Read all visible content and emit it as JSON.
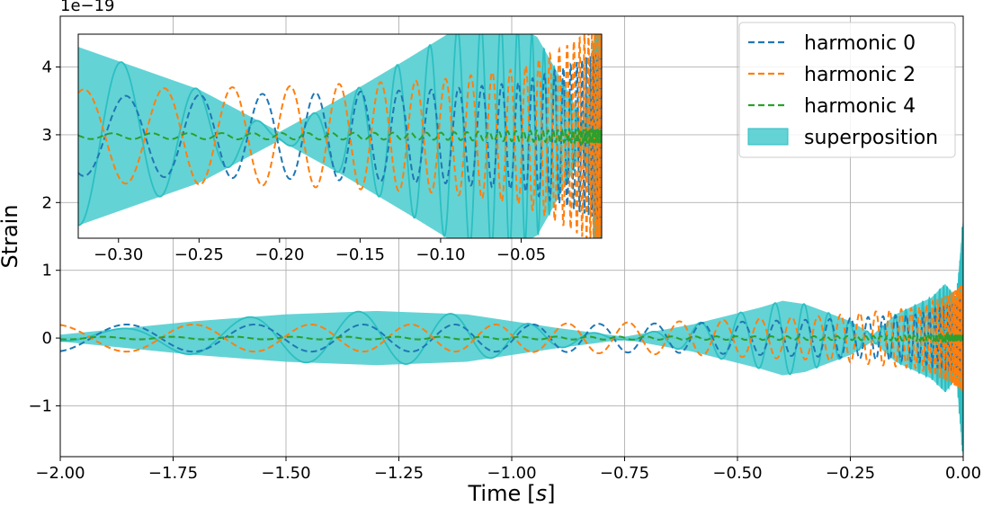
{
  "chart_data": [
    {
      "id": "main",
      "type": "line",
      "title": "",
      "xlabel": "Time",
      "xlabel_unit": "s",
      "ylabel": "Strain",
      "offset_text": "1e−19",
      "xlim": [
        -2.0,
        0.0
      ],
      "ylim": [
        -1.75,
        4.75
      ],
      "grid": true,
      "x_ticks": [
        -2.0,
        -1.75,
        -1.5,
        -1.25,
        -1.0,
        -0.75,
        -0.5,
        -0.25,
        0.0
      ],
      "x_tick_labels": [
        "−2.00",
        "−1.75",
        "−1.50",
        "−1.25",
        "−1.00",
        "−0.75",
        "−0.50",
        "−0.25",
        "0.00"
      ],
      "y_ticks": [
        -1,
        0,
        1,
        2,
        3,
        4
      ],
      "y_tick_labels": [
        "−1",
        "0",
        "1",
        "2",
        "3",
        "4"
      ],
      "legend_position": "top-right",
      "series": [
        {
          "name": "harmonic 0",
          "style": "dashed",
          "color": "#1f77b4",
          "amplitude_points": [
            [
              -2.0,
              0.2
            ],
            [
              -1.0,
              0.2
            ],
            [
              -0.6,
              0.22
            ],
            [
              -0.3,
              0.28
            ],
            [
              -0.1,
              0.35
            ],
            [
              -0.03,
              0.5
            ],
            [
              0.0,
              0.6
            ]
          ]
        },
        {
          "name": "harmonic 2",
          "style": "dashed",
          "color": "#ff7f0e",
          "amplitude_points": [
            [
              -2.0,
              0.2
            ],
            [
              -1.0,
              0.2
            ],
            [
              -0.6,
              0.25
            ],
            [
              -0.3,
              0.33
            ],
            [
              -0.1,
              0.45
            ],
            [
              -0.03,
              0.65
            ],
            [
              0.0,
              0.8
            ]
          ]
        },
        {
          "name": "harmonic 4",
          "style": "dashed",
          "color": "#2ca02c",
          "amplitude_points": [
            [
              -2.0,
              0.02
            ],
            [
              -1.0,
              0.02
            ],
            [
              -0.2,
              0.03
            ],
            [
              0.0,
              0.05
            ]
          ]
        },
        {
          "name": "superposition",
          "style": "filled",
          "color": "#4ecdcf",
          "envelope_points": [
            [
              -2.0,
              0.05
            ],
            [
              -1.7,
              0.25
            ],
            [
              -1.5,
              0.35
            ],
            [
              -1.3,
              0.4
            ],
            [
              -1.1,
              0.35
            ],
            [
              -0.9,
              0.15
            ],
            [
              -0.75,
              0.02
            ],
            [
              -0.6,
              0.2
            ],
            [
              -0.45,
              0.45
            ],
            [
              -0.4,
              0.55
            ],
            [
              -0.35,
              0.5
            ],
            [
              -0.25,
              0.25
            ],
            [
              -0.2,
              0.05
            ],
            [
              -0.15,
              0.35
            ],
            [
              -0.07,
              0.6
            ],
            [
              -0.04,
              0.8
            ],
            [
              -0.015,
              0.6
            ],
            [
              0.0,
              1.8
            ]
          ]
        }
      ]
    },
    {
      "id": "inset",
      "type": "line",
      "xlim": [
        -0.325,
        0.0
      ],
      "ylim": [
        -0.72,
        0.72
      ],
      "x_ticks": [
        -0.3,
        -0.25,
        -0.2,
        -0.15,
        -0.1,
        -0.05
      ],
      "x_tick_labels": [
        "−0.30",
        "−0.25",
        "−0.20",
        "−0.15",
        "−0.10",
        "−0.05"
      ],
      "series": [
        {
          "name": "harmonic 0",
          "style": "dashed",
          "color": "#1f77b4",
          "amplitude_points": [
            [
              -0.325,
              0.28
            ],
            [
              -0.2,
              0.3
            ],
            [
              -0.1,
              0.33
            ],
            [
              -0.05,
              0.38
            ],
            [
              -0.02,
              0.5
            ],
            [
              0.0,
              0.6
            ]
          ]
        },
        {
          "name": "harmonic 2",
          "style": "dashed",
          "color": "#ff7f0e",
          "amplitude_points": [
            [
              -0.325,
              0.33
            ],
            [
              -0.2,
              0.35
            ],
            [
              -0.1,
              0.4
            ],
            [
              -0.05,
              0.48
            ],
            [
              -0.02,
              0.65
            ],
            [
              0.0,
              0.8
            ]
          ]
        },
        {
          "name": "harmonic 4",
          "style": "dashed",
          "color": "#2ca02c",
          "amplitude_points": [
            [
              -0.325,
              0.02
            ],
            [
              -0.1,
              0.025
            ],
            [
              0.0,
              0.05
            ]
          ]
        },
        {
          "name": "superposition",
          "style": "filled",
          "color": "#4ecdcf",
          "envelope_points": [
            [
              -0.325,
              0.63
            ],
            [
              -0.25,
              0.33
            ],
            [
              -0.2,
              0.03
            ],
            [
              -0.16,
              0.28
            ],
            [
              -0.12,
              0.55
            ],
            [
              -0.09,
              0.76
            ],
            [
              -0.06,
              0.82
            ],
            [
              -0.04,
              0.7
            ],
            [
              -0.02,
              0.3
            ],
            [
              -0.012,
              0.1
            ],
            [
              -0.006,
              0.5
            ],
            [
              0.0,
              1.6
            ]
          ]
        }
      ]
    }
  ]
}
